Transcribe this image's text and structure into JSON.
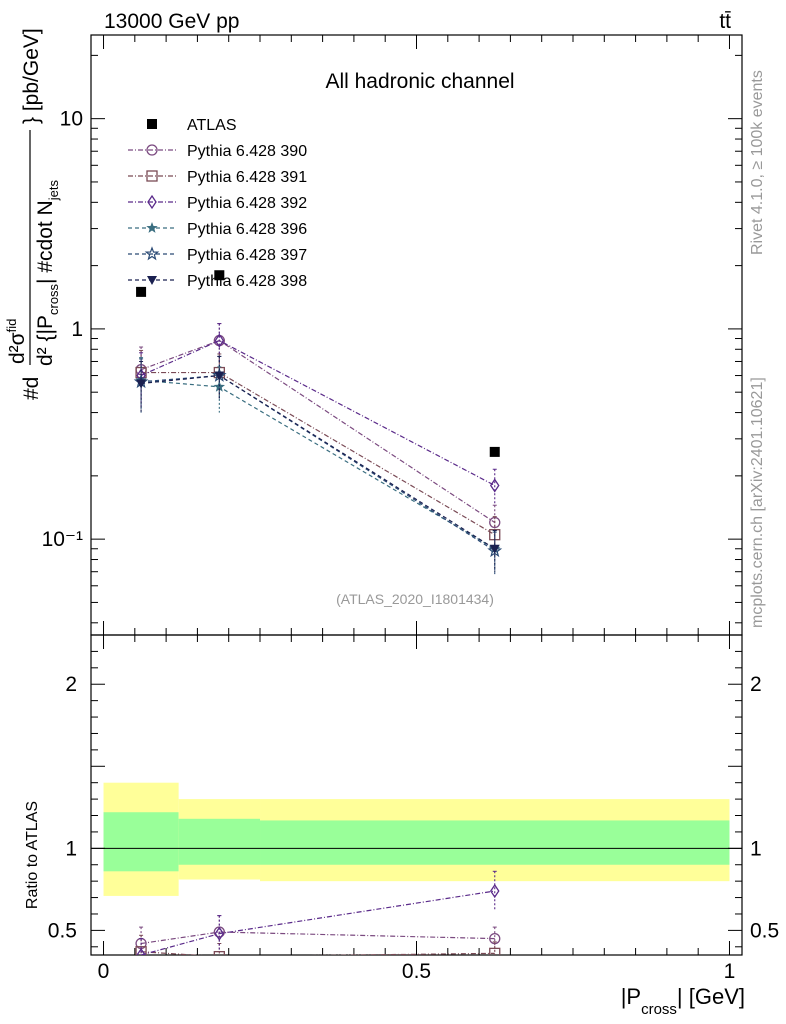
{
  "header": {
    "left": "13000 GeV pp",
    "right": "tt̄"
  },
  "side_labels": {
    "rivet": "Rivet 4.1.0, ≥ 100k events",
    "mcplots": "mcplots.cern.ch [arXiv:2401.10621]"
  },
  "chart_data": {
    "type": "scatter",
    "title": "All hadronic channel",
    "analysis_tag": "(ATLAS_2020_I1801434)",
    "x_label": "|P_cross| [GeV]",
    "y_label_upper": "#d²σ^fid / d²{|P_cross| #cdot N_jets} [pb/GeV]",
    "y_label_lower": "Ratio to ATLAS",
    "xlim": [
      -0.02,
      1.02
    ],
    "ylim_upper_log": [
      0.035,
      25
    ],
    "ylim_lower": [
      0.35,
      2.3
    ],
    "x_ticks": [
      0,
      0.5,
      1
    ],
    "x_tick_labels": [
      "0",
      "0.5",
      "1"
    ],
    "y_ticks_upper": [
      0.1,
      1,
      10
    ],
    "y_tick_labels_upper": [
      "10⁻¹",
      "1",
      "10"
    ],
    "y_ticks_lower": [
      0.5,
      1,
      2
    ],
    "y_tick_labels_lower": [
      "0.5",
      "1",
      "2"
    ],
    "bins": [
      {
        "lo": 0.0,
        "hi": 0.12
      },
      {
        "lo": 0.12,
        "hi": 0.25
      },
      {
        "lo": 0.25,
        "hi": 1.0
      }
    ],
    "x_centers": [
      0.06,
      0.185,
      0.625
    ],
    "data": {
      "name": "ATLAS",
      "values": [
        1.5,
        1.8,
        0.26
      ],
      "ratio_band_total": [
        [
          0.71,
          1.4
        ],
        [
          0.81,
          1.3
        ],
        [
          0.8,
          1.3
        ]
      ],
      "ratio_band_stat": [
        [
          0.86,
          1.22
        ],
        [
          0.9,
          1.18
        ],
        [
          0.9,
          1.17
        ]
      ]
    },
    "series": [
      {
        "name": "Pythia 6.428 390",
        "marker": "circle",
        "dash": "5,2,1,2",
        "color": "#7b4a80",
        "values": [
          0.64,
          0.88,
          0.12
        ],
        "errors": [
          0.18,
          0.18,
          0.025
        ]
      },
      {
        "name": "Pythia 6.428 391",
        "marker": "square",
        "dash": "5,2,1,2",
        "color": "#7a4a55",
        "values": [
          0.62,
          0.62,
          0.105
        ],
        "errors": [
          0.17,
          0.14,
          0.023
        ]
      },
      {
        "name": "Pythia 6.428 392",
        "marker": "diamond",
        "dash": "5,2,1,2",
        "color": "#5a2a8a",
        "values": [
          0.6,
          0.88,
          0.18
        ],
        "errors": [
          0.17,
          0.18,
          0.035
        ]
      },
      {
        "name": "Pythia 6.428 396",
        "marker": "star",
        "dash": "4,3",
        "color": "#3a6e80",
        "values": [
          0.57,
          0.53,
          0.09
        ],
        "errors": [
          0.16,
          0.13,
          0.02
        ]
      },
      {
        "name": "Pythia 6.428 397",
        "marker": "star-open",
        "dash": "4,3",
        "color": "#2a4a75",
        "values": [
          0.56,
          0.6,
          0.088
        ],
        "errors": [
          0.16,
          0.14,
          0.02
        ]
      },
      {
        "name": "Pythia 6.428 398",
        "marker": "triangle-down",
        "dash": "4,3",
        "color": "#1a2050",
        "values": [
          0.55,
          0.6,
          0.09
        ],
        "errors": [
          0.15,
          0.14,
          0.02
        ]
      }
    ],
    "ratio_series": [
      {
        "name": "Pythia 6.428 390",
        "values": [
          0.42,
          0.49,
          0.45
        ],
        "errors": [
          0.1,
          0.1,
          0.07
        ]
      },
      {
        "name": "Pythia 6.428 391",
        "values": [
          0.37,
          0.34,
          0.36
        ],
        "errors": [
          0.1,
          0.08,
          0.07
        ]
      },
      {
        "name": "Pythia 6.428 392",
        "values": [
          0.35,
          0.48,
          0.74
        ],
        "errors": [
          0.1,
          0.11,
          0.12
        ]
      }
    ]
  }
}
